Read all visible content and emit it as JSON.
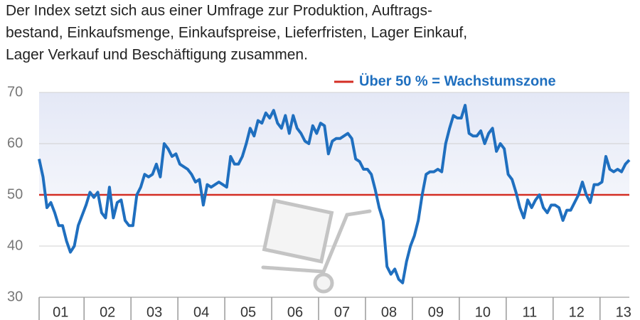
{
  "chart_data": {
    "type": "line",
    "title_lines": [
      "Der Index setzt sich aus einer Umfrage zur Produktion, Auftrags-",
      "bestand, Einkaufsmenge, Einkaufspreise, Lieferfristen, Lager Einkauf,",
      "Lager Verkauf und Beschäftigung zusammen."
    ],
    "categories": [
      null,
      null,
      null,
      null,
      null,
      null,
      "01",
      null,
      null,
      null,
      null,
      null,
      null,
      null,
      null,
      null,
      null,
      null,
      "02",
      null,
      null,
      null,
      null,
      null,
      null,
      null,
      null,
      null,
      null,
      null,
      "03",
      null,
      null,
      null,
      null,
      null,
      null,
      null,
      null,
      null,
      null,
      null,
      "04",
      null,
      null,
      null,
      null,
      null,
      null,
      null,
      null,
      null,
      null,
      null,
      "05",
      null,
      null,
      null,
      null,
      null,
      null,
      null,
      null,
      null,
      null,
      null,
      "06",
      null,
      null,
      null,
      null,
      null,
      null,
      null,
      null,
      null,
      null,
      null,
      "07",
      null,
      null,
      null,
      null,
      null,
      null,
      null,
      null,
      null,
      null,
      null,
      "08",
      null,
      null,
      null,
      null,
      null,
      null,
      null,
      null,
      null,
      null,
      null,
      "09",
      null,
      null,
      null,
      null,
      null,
      null,
      null,
      null,
      null,
      null,
      null,
      "10",
      null,
      null,
      null,
      null,
      null,
      null,
      null,
      null,
      null,
      null,
      null,
      "11",
      null,
      null,
      null,
      null,
      null,
      null,
      null,
      null,
      null,
      null,
      null,
      "12",
      null,
      null,
      null,
      null,
      null,
      null,
      null,
      null,
      null,
      null,
      null,
      "13",
      null
    ],
    "series": [
      {
        "name": "Index",
        "color": "#1f6fbf",
        "values": [
          57,
          53.5,
          47.5,
          48.5,
          46.5,
          44,
          44,
          41,
          38.8,
          40,
          44,
          46,
          48,
          50.5,
          49.5,
          50.5,
          46.5,
          45.5,
          51.5,
          45.5,
          48.5,
          49,
          45,
          44,
          44,
          50,
          51.5,
          54,
          53.5,
          54,
          56,
          53.5,
          60,
          59,
          57.5,
          58,
          56,
          55.5,
          55,
          54,
          52.5,
          53,
          48,
          52,
          51.5,
          52,
          52.5,
          52,
          51.5,
          57.5,
          56,
          56,
          57.5,
          60,
          63,
          61.5,
          64.5,
          64,
          66,
          65,
          66.5,
          64,
          63,
          65.5,
          62,
          65.5,
          63,
          62,
          60.5,
          60,
          63.5,
          62,
          64,
          63.5,
          58,
          60.5,
          61,
          61,
          61.5,
          62,
          61,
          57,
          56.5,
          55,
          55,
          54,
          51,
          47.5,
          45,
          36,
          34.5,
          35.5,
          33.5,
          32.8,
          37,
          40,
          42,
          45,
          50,
          54,
          54.5,
          54.5,
          55,
          54.5,
          60,
          63,
          65.5,
          65,
          65,
          67.5,
          62,
          61.5,
          61.5,
          62.5,
          60,
          62,
          63,
          58.5,
          60,
          59,
          54,
          53,
          50.5,
          47.5,
          45.5,
          49,
          47.5,
          49,
          50,
          47.5,
          46.5,
          48,
          48,
          47.5,
          45,
          47,
          47,
          48.5,
          50,
          52.5,
          50,
          48.5,
          52,
          52,
          52.5,
          57.5,
          55,
          54.5,
          55,
          54.5,
          56,
          56.8
        ]
      }
    ],
    "reference_line": {
      "value": 50,
      "label": "Über 50 % = Wachstumszone",
      "color": "#d42e24"
    },
    "ylim": [
      30,
      70
    ],
    "yticks": [
      30,
      40,
      50,
      60,
      70
    ],
    "grid": true
  }
}
